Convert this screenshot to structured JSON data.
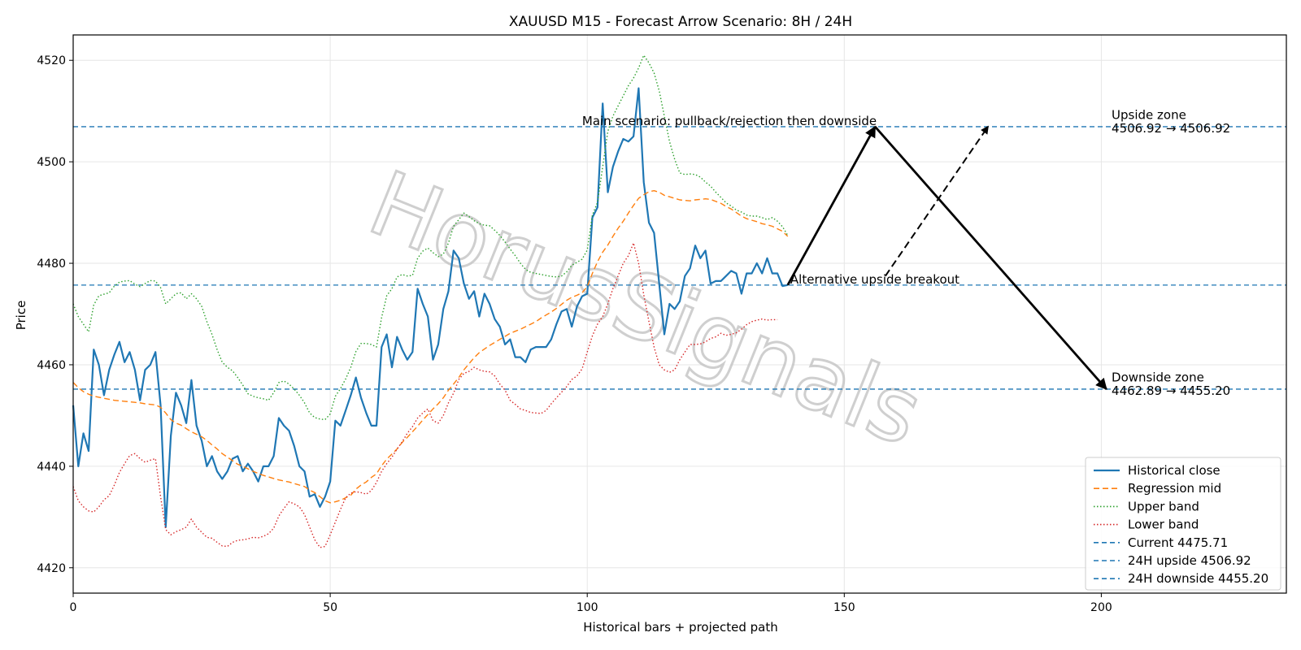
{
  "chart_data": {
    "type": "line",
    "title": "XAUUSD M15 - Forecast Arrow Scenario: 8H / 24H",
    "xlabel": "Historical bars + projected path",
    "ylabel": "Price",
    "xlim": [
      0,
      236
    ],
    "ylim": [
      4415,
      4525
    ],
    "x_ticks": [
      0,
      50,
      100,
      150,
      200
    ],
    "y_ticks": [
      4420,
      4440,
      4460,
      4480,
      4500,
      4520
    ],
    "grid": true,
    "legend_position": "lower-right",
    "watermark": "HorusSignals",
    "series": [
      {
        "name": "Historical close",
        "style": "solid",
        "color": "#1f77b4",
        "x_start": 0,
        "values": [
          4452,
          4440,
          4446.5,
          4443,
          4463,
          4460,
          4454,
          4459,
          4462,
          4464.5,
          4460.5,
          4462.5,
          4459,
          4453,
          4459,
          4460,
          4462.5,
          4452,
          4428,
          4446,
          4454.5,
          4452,
          4448.5,
          4457,
          4448,
          4445,
          4440,
          4442,
          4439,
          4437.5,
          4439,
          4441.5,
          4442,
          4439,
          4440.5,
          4439,
          4437,
          4440,
          4440,
          4442,
          4449.5,
          4448,
          4447,
          4444,
          4440,
          4439,
          4434,
          4434.5,
          4432,
          4434,
          4437,
          4449,
          4448,
          4451,
          4454,
          4457.5,
          4453.5,
          4450.5,
          4448,
          4448,
          4463.5,
          4466,
          4459.5,
          4465.5,
          4463,
          4461,
          4462.5,
          4475,
          4472,
          4469.5,
          4461,
          4464,
          4471,
          4474.5,
          4482.5,
          4481,
          4476,
          4473,
          4474.5,
          4469.5,
          4474,
          4472,
          4469,
          4467.5,
          4464,
          4465,
          4461.5,
          4461.5,
          4460.5,
          4463,
          4463.5,
          4463.5,
          4463.5,
          4465,
          4468,
          4470.5,
          4471,
          4467.5,
          4471.5,
          4473.5,
          4474,
          4489,
          4491,
          4511.5,
          4494,
          4499,
          4502,
          4504.5,
          4504,
          4505,
          4514.5,
          4496,
          4488,
          4486,
          4476,
          4466,
          4472,
          4471,
          4472.5,
          4477.5,
          4479,
          4483.5,
          4481,
          4482.5,
          4476,
          4476.5,
          4476.5,
          4477.5,
          4478.5,
          4478,
          4474,
          4478,
          4478,
          4480,
          4478,
          4481,
          4478,
          4478,
          4475.5,
          4475.71
        ]
      },
      {
        "name": "Regression mid",
        "style": "dashed",
        "color": "#ff7f0e",
        "x_start": 0,
        "values": [
          4456.5,
          4455.5,
          4454.7,
          4454.2,
          4453.8,
          4453.6,
          4453.4,
          4453.2,
          4453,
          4452.9,
          4452.8,
          4452.7,
          4452.6,
          4452.5,
          4452.3,
          4452.2,
          4452.1,
          4451.6,
          4450.5,
          4449.2,
          4448.5,
          4448.1,
          4447.4,
          4446.8,
          4446.3,
          4445.8,
          4445.1,
          4444.2,
          4443.4,
          4442.5,
          4441.8,
          4441.1,
          4440.4,
          4440,
          4439.5,
          4439,
          4438.6,
          4438.2,
          4437.9,
          4437.6,
          4437.3,
          4437.1,
          4436.9,
          4436.6,
          4436.3,
          4436,
          4435.3,
          4434.8,
          4434,
          4433.2,
          4432.8,
          4433,
          4433.3,
          4433.8,
          4434.3,
          4435.5,
          4436.3,
          4436.9,
          4437.8,
          4438.5,
          4440.1,
          4441.4,
          4442.4,
          4443.4,
          4444.7,
          4445.7,
          4446.8,
          4447.9,
          4449.1,
          4450.2,
          4451.3,
          4452.3,
          4453.5,
          4455,
          4456.2,
          4457.5,
          4459,
          4460.2,
          4461.4,
          4462.4,
          4463.1,
          4463.8,
          4464.4,
          4465,
          4465.6,
          4466.2,
          4466.6,
          4467,
          4467.5,
          4468,
          4468.5,
          4469.2,
          4469.8,
          4470.4,
          4471.1,
          4471.9,
          4472.7,
          4473.3,
          4473.7,
          4474.2,
          4475.4,
          4478,
          4480.3,
          4482.2,
          4483.6,
          4485.3,
          4486.9,
          4488.3,
          4489.9,
          4491.4,
          4492.8,
          4493.5,
          4494.1,
          4494.3,
          4494,
          4493.4,
          4493.1,
          4492.8,
          4492.5,
          4492.4,
          4492.3,
          4492.5,
          4492.6,
          4492.7,
          4492.6,
          4492.2,
          4491.8,
          4491.2,
          4490.7,
          4490,
          4489.3,
          4488.8,
          4488.5,
          4488.2,
          4487.8,
          4487.6,
          4487.3,
          4486.8,
          4486.3,
          4485.3
        ]
      },
      {
        "name": "Upper band",
        "style": "dotted",
        "color": "#2ca02c",
        "x_start": 0,
        "values": [
          4472,
          4469.5,
          4468,
          4466.5,
          4471.8,
          4473.6,
          4473.9,
          4474.2,
          4475.5,
          4476.3,
          4476.5,
          4476.6,
          4475.9,
          4475.4,
          4476,
          4476.6,
          4476.5,
          4475.2,
          4472,
          4473,
          4474,
          4474.2,
          4473,
          4474,
          4473,
          4471.5,
          4468.5,
          4466,
          4463,
          4460.5,
          4459.5,
          4458.8,
          4457.5,
          4456,
          4454.3,
          4453.8,
          4453.5,
          4453.3,
          4453,
          4454.5,
          4456.5,
          4456.8,
          4456.2,
          4455.2,
          4454,
          4452.5,
          4450.5,
          4449.6,
          4449.3,
          4449.2,
          4450.3,
          4453.8,
          4455.3,
          4457.2,
          4459.5,
          4462.6,
          4464.2,
          4464.2,
          4464,
          4463.5,
          4469.3,
          4473.6,
          4475,
          4477.3,
          4477.8,
          4477.5,
          4477.6,
          4481,
          4482.4,
          4483,
          4482.1,
          4481.3,
          4481.8,
          4484,
          4487.3,
          4488.6,
          4489.9,
          4489.2,
          4488.4,
          4487.8,
          4487.5,
          4487.4,
          4486.5,
          4485.5,
          4484.2,
          4482.8,
          4481.5,
          4480,
          4478.8,
          4478.2,
          4478,
          4477.8,
          4477.6,
          4477.4,
          4477.3,
          4477.5,
          4478.3,
          4479.6,
          4480.2,
          4480.8,
          4482.6,
          4489.5,
          4492,
          4499,
          4506,
          4509,
          4511,
          4513,
          4515,
          4516.5,
          4518.5,
          4521,
          4519.5,
          4517.5,
          4514,
          4509,
          4504,
          4500.5,
          4497.8,
          4497.5,
          4497.6,
          4497.5,
          4497,
          4496,
          4495.2,
          4494,
          4493,
          4491.9,
          4491.3,
          4490.5,
          4490.1,
          4489.5,
          4489.3,
          4489.3,
          4489,
          4488.6,
          4489,
          4488.3,
          4487.2,
          4485.5
        ]
      },
      {
        "name": "Lower band",
        "style": "dotted",
        "color": "#d62728",
        "x_start": 0,
        "values": [
          4436,
          4433.2,
          4432,
          4431.2,
          4431,
          4432,
          4433.4,
          4434.2,
          4436.3,
          4438.8,
          4440.5,
          4442.1,
          4442.5,
          4441.5,
          4440.8,
          4441.2,
          4441.5,
          4434,
          4427.5,
          4426.5,
          4427.1,
          4427.5,
          4428,
          4429.6,
          4428,
          4427,
          4426,
          4425.8,
          4425,
          4424.3,
          4424.2,
          4425,
          4425.4,
          4425.5,
          4425.7,
          4426,
          4425.9,
          4426.2,
          4426.7,
          4427.8,
          4430.2,
          4431.7,
          4433,
          4432.6,
          4432,
          4430.5,
          4428,
          4425.5,
          4424,
          4424.2,
          4426.5,
          4429,
          4431.5,
          4433.8,
          4434.7,
          4435,
          4434.8,
          4434.5,
          4435.2,
          4436.8,
          4439,
          4440.5,
          4441.8,
          4443.4,
          4444.8,
          4446.5,
          4447.8,
          4449.5,
          4450.5,
          4451.3,
          4449,
          4448.5,
          4450,
          4452.5,
          4454.4,
          4457.1,
          4458.3,
          4458.7,
          4459.5,
          4459,
          4458.7,
          4458.6,
          4457.8,
          4456.2,
          4455,
          4453,
          4452.2,
          4451.3,
          4451,
          4450.6,
          4450.5,
          4450.4,
          4451,
          4452.3,
          4453.5,
          4454.6,
          4455.7,
          4457.1,
          4457.8,
          4459.2,
          4462.5,
          4465.7,
          4468,
          4469.5,
          4472,
          4475,
          4477.5,
          4480,
          4481.5,
          4484,
          4480,
          4473.8,
          4468.5,
          4463.5,
          4460,
          4459,
          4458.5,
          4459,
          4461,
          4462.5,
          4464,
          4464,
          4464.1,
          4464.5,
          4465.2,
          4465.5,
          4466.2,
          4465.8,
          4466,
          4466.3,
          4467,
          4467.9,
          4468.5,
          4468.8,
          4469,
          4468.8,
          4468.9,
          4468.9
        ]
      },
      {
        "name": "Current 4475.71",
        "style": "hline-dashed",
        "color": "#1f77b4",
        "value": 4475.71
      },
      {
        "name": "24H upside 4506.92",
        "style": "hline-dashed",
        "color": "#1f77b4",
        "value": 4506.92
      },
      {
        "name": "24H downside 4455.20",
        "style": "hline-dashed",
        "color": "#1f77b4",
        "value": 4455.2
      }
    ],
    "arrows": [
      {
        "role": "main",
        "style": "solid",
        "from": [
          139,
          4475.71
        ],
        "to": [
          156,
          4506.92
        ]
      },
      {
        "role": "main",
        "style": "solid",
        "from": [
          156,
          4506.92
        ],
        "to": [
          201,
          4455.2
        ]
      },
      {
        "role": "alternative",
        "style": "dashed",
        "from": [
          158,
          4477.5
        ],
        "to": [
          178,
          4507
        ]
      }
    ],
    "annotations": [
      {
        "text": "Main scenario: pullback/rejection then downside",
        "x": 99,
        "y": 4507.2
      },
      {
        "text": "Alternative upside breakout",
        "x": 139.5,
        "y": 4476
      },
      {
        "text": "Upside zone",
        "x": 202,
        "y": 4508.4
      },
      {
        "text": "4506.92 → 4506.92",
        "x": 202,
        "y": 4505.8
      },
      {
        "text": "Downside zone",
        "x": 202,
        "y": 4456.7
      },
      {
        "text": "4462.89 → 4455.20",
        "x": 202,
        "y": 4454.1
      }
    ]
  }
}
